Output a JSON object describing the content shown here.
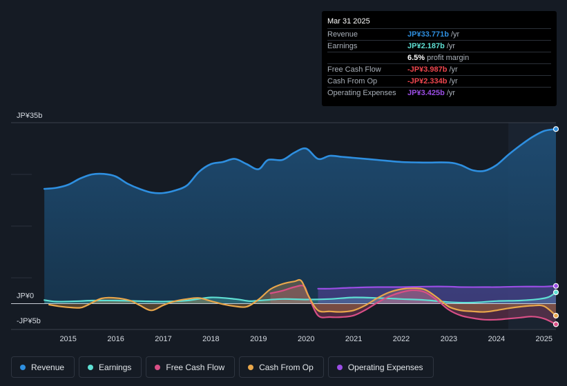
{
  "chart_data": {
    "type": "area",
    "title": "",
    "xlabel": "",
    "ylabel": "",
    "ylim": [
      -5,
      35
    ],
    "y_ticks": [
      {
        "value": 35,
        "label": "JP¥35b"
      },
      {
        "value": 0,
        "label": "JP¥0"
      },
      {
        "value": -5,
        "label": "-JP¥5b"
      }
    ],
    "x_ticks": [
      {
        "value": 2015,
        "label": "2015"
      },
      {
        "value": 2016,
        "label": "2016"
      },
      {
        "value": 2017,
        "label": "2017"
      },
      {
        "value": 2018,
        "label": "2018"
      },
      {
        "value": 2019,
        "label": "2019"
      },
      {
        "value": 2020,
        "label": "2020"
      },
      {
        "value": 2021,
        "label": "2021"
      },
      {
        "value": 2022,
        "label": "2022"
      },
      {
        "value": 2023,
        "label": "2023"
      },
      {
        "value": 2024,
        "label": "2024"
      },
      {
        "value": 2025,
        "label": "2025"
      }
    ],
    "xlim": [
      2013.8,
      2025.25
    ],
    "highlight_start": 2024.25,
    "series": [
      {
        "name": "Revenue",
        "color": "#2e8fe0",
        "fill": true,
        "points": [
          [
            2014.5,
            22.2
          ],
          [
            2014.75,
            22.4
          ],
          [
            2015.0,
            23.0
          ],
          [
            2015.25,
            24.2
          ],
          [
            2015.5,
            25.0
          ],
          [
            2015.75,
            25.1
          ],
          [
            2016.0,
            24.6
          ],
          [
            2016.25,
            23.2
          ],
          [
            2016.5,
            22.2
          ],
          [
            2016.75,
            21.5
          ],
          [
            2017.0,
            21.4
          ],
          [
            2017.25,
            21.9
          ],
          [
            2017.5,
            22.9
          ],
          [
            2017.75,
            25.5
          ],
          [
            2018.0,
            27.0
          ],
          [
            2018.25,
            27.4
          ],
          [
            2018.5,
            28.0
          ],
          [
            2018.75,
            27.0
          ],
          [
            2019.0,
            26.0
          ],
          [
            2019.2,
            27.8
          ],
          [
            2019.5,
            27.8
          ],
          [
            2019.75,
            29.2
          ],
          [
            2020.0,
            30.0
          ],
          [
            2020.25,
            28.0
          ],
          [
            2020.5,
            28.6
          ],
          [
            2020.75,
            28.4
          ],
          [
            2021.0,
            28.2
          ],
          [
            2021.5,
            27.8
          ],
          [
            2022.0,
            27.4
          ],
          [
            2022.5,
            27.3
          ],
          [
            2023.0,
            27.3
          ],
          [
            2023.25,
            26.8
          ],
          [
            2023.5,
            25.8
          ],
          [
            2023.75,
            25.7
          ],
          [
            2024.0,
            26.8
          ],
          [
            2024.25,
            28.8
          ],
          [
            2024.5,
            30.6
          ],
          [
            2024.75,
            32.2
          ],
          [
            2025.0,
            33.4
          ],
          [
            2025.25,
            33.771
          ]
        ]
      },
      {
        "name": "Earnings",
        "color": "#5fe0d4",
        "fill": true,
        "points": [
          [
            2014.5,
            0.7
          ],
          [
            2014.75,
            0.4
          ],
          [
            2015.25,
            0.5
          ],
          [
            2015.5,
            0.6
          ],
          [
            2016.0,
            0.6
          ],
          [
            2016.5,
            0.5
          ],
          [
            2017.0,
            0.4
          ],
          [
            2017.5,
            0.6
          ],
          [
            2018.0,
            1.2
          ],
          [
            2018.5,
            0.9
          ],
          [
            2018.8,
            0.5
          ],
          [
            2019.0,
            0.6
          ],
          [
            2019.5,
            0.9
          ],
          [
            2020.0,
            0.8
          ],
          [
            2020.5,
            0.9
          ],
          [
            2021.0,
            1.2
          ],
          [
            2021.5,
            1.1
          ],
          [
            2022.0,
            0.9
          ],
          [
            2022.5,
            0.7
          ],
          [
            2023.0,
            0.3
          ],
          [
            2023.5,
            0.2
          ],
          [
            2024.0,
            0.5
          ],
          [
            2024.5,
            0.6
          ],
          [
            2024.9,
            0.9
          ],
          [
            2025.1,
            1.3
          ],
          [
            2025.25,
            2.187
          ]
        ]
      },
      {
        "name": "Free Cash Flow",
        "color": "#d94f86",
        "fill": true,
        "points": [
          [
            2019.25,
            2.0
          ],
          [
            2019.5,
            2.5
          ],
          [
            2019.75,
            3.2
          ],
          [
            2019.95,
            3.4
          ],
          [
            2020.05,
            1.5
          ],
          [
            2020.25,
            -2.3
          ],
          [
            2020.5,
            -2.6
          ],
          [
            2020.75,
            -2.6
          ],
          [
            2021.0,
            -2.3
          ],
          [
            2021.25,
            -1.2
          ],
          [
            2021.5,
            0.2
          ],
          [
            2021.75,
            1.4
          ],
          [
            2022.0,
            2.2
          ],
          [
            2022.25,
            2.6
          ],
          [
            2022.5,
            2.2
          ],
          [
            2022.75,
            0.7
          ],
          [
            2023.0,
            -1.2
          ],
          [
            2023.25,
            -2.3
          ],
          [
            2023.5,
            -2.8
          ],
          [
            2023.75,
            -3.1
          ],
          [
            2024.0,
            -3.1
          ],
          [
            2024.25,
            -2.9
          ],
          [
            2024.5,
            -2.7
          ],
          [
            2024.75,
            -2.5
          ],
          [
            2025.0,
            -2.9
          ],
          [
            2025.25,
            -3.987
          ]
        ]
      },
      {
        "name": "Cash From Op",
        "color": "#e9a74b",
        "fill": true,
        "points": [
          [
            2014.6,
            -0.2
          ],
          [
            2014.8,
            -0.5
          ],
          [
            2015.0,
            -0.7
          ],
          [
            2015.25,
            -0.8
          ],
          [
            2015.4,
            -0.3
          ],
          [
            2015.7,
            1.0
          ],
          [
            2016.0,
            1.1
          ],
          [
            2016.3,
            0.6
          ],
          [
            2016.5,
            -0.3
          ],
          [
            2016.75,
            -1.3
          ],
          [
            2017.0,
            -0.3
          ],
          [
            2017.25,
            0.5
          ],
          [
            2017.5,
            0.9
          ],
          [
            2017.75,
            1.1
          ],
          [
            2018.0,
            0.5
          ],
          [
            2018.25,
            -0.1
          ],
          [
            2018.5,
            -0.5
          ],
          [
            2018.75,
            -0.6
          ],
          [
            2019.0,
            0.8
          ],
          [
            2019.25,
            2.8
          ],
          [
            2019.5,
            3.8
          ],
          [
            2019.75,
            4.3
          ],
          [
            2019.9,
            4.4
          ],
          [
            2020.05,
            1.5
          ],
          [
            2020.25,
            -1.3
          ],
          [
            2020.5,
            -1.5
          ],
          [
            2020.75,
            -1.6
          ],
          [
            2021.0,
            -1.3
          ],
          [
            2021.25,
            -0.3
          ],
          [
            2021.5,
            1.1
          ],
          [
            2021.75,
            2.2
          ],
          [
            2022.0,
            2.8
          ],
          [
            2022.25,
            3.0
          ],
          [
            2022.5,
            2.7
          ],
          [
            2022.75,
            1.2
          ],
          [
            2023.0,
            -0.6
          ],
          [
            2023.25,
            -1.3
          ],
          [
            2023.5,
            -1.5
          ],
          [
            2023.75,
            -1.6
          ],
          [
            2024.0,
            -1.3
          ],
          [
            2024.25,
            -0.9
          ],
          [
            2024.5,
            -0.6
          ],
          [
            2024.75,
            -0.4
          ],
          [
            2025.0,
            -0.5
          ],
          [
            2025.25,
            -2.334
          ]
        ]
      },
      {
        "name": "Operating Expenses",
        "color": "#9b4ee6",
        "fill": true,
        "points": [
          [
            2020.25,
            2.9
          ],
          [
            2020.5,
            2.9
          ],
          [
            2021.0,
            3.1
          ],
          [
            2021.5,
            3.2
          ],
          [
            2022.0,
            3.2
          ],
          [
            2022.5,
            3.3
          ],
          [
            2023.0,
            3.3
          ],
          [
            2023.25,
            3.2
          ],
          [
            2023.75,
            3.2
          ],
          [
            2024.0,
            3.2
          ],
          [
            2024.5,
            3.3
          ],
          [
            2025.0,
            3.3
          ],
          [
            2025.25,
            3.425
          ]
        ]
      }
    ]
  },
  "tooltip": {
    "date": "Mar 31 2025",
    "rows": [
      {
        "label": "Revenue",
        "value": "JP¥33.771b",
        "unit": "/yr",
        "color": "#2e8fe0"
      },
      {
        "label": "Earnings",
        "value": "JP¥2.187b",
        "unit": "/yr",
        "color": "#5fe0d4"
      },
      {
        "label": "",
        "value": "6.5%",
        "unit": "profit margin",
        "color": "#ffffff"
      },
      {
        "label": "Free Cash Flow",
        "value": "-JP¥3.987b",
        "unit": "/yr",
        "color": "#f0464e"
      },
      {
        "label": "Cash From Op",
        "value": "-JP¥2.334b",
        "unit": "/yr",
        "color": "#f0464e"
      },
      {
        "label": "Operating Expenses",
        "value": "JP¥3.425b",
        "unit": "/yr",
        "color": "#9b4ee6"
      }
    ]
  },
  "legend": [
    {
      "label": "Revenue",
      "color": "#2e8fe0"
    },
    {
      "label": "Earnings",
      "color": "#5fe0d4"
    },
    {
      "label": "Free Cash Flow",
      "color": "#d94f86"
    },
    {
      "label": "Cash From Op",
      "color": "#e9a74b"
    },
    {
      "label": "Operating Expenses",
      "color": "#9b4ee6"
    }
  ]
}
